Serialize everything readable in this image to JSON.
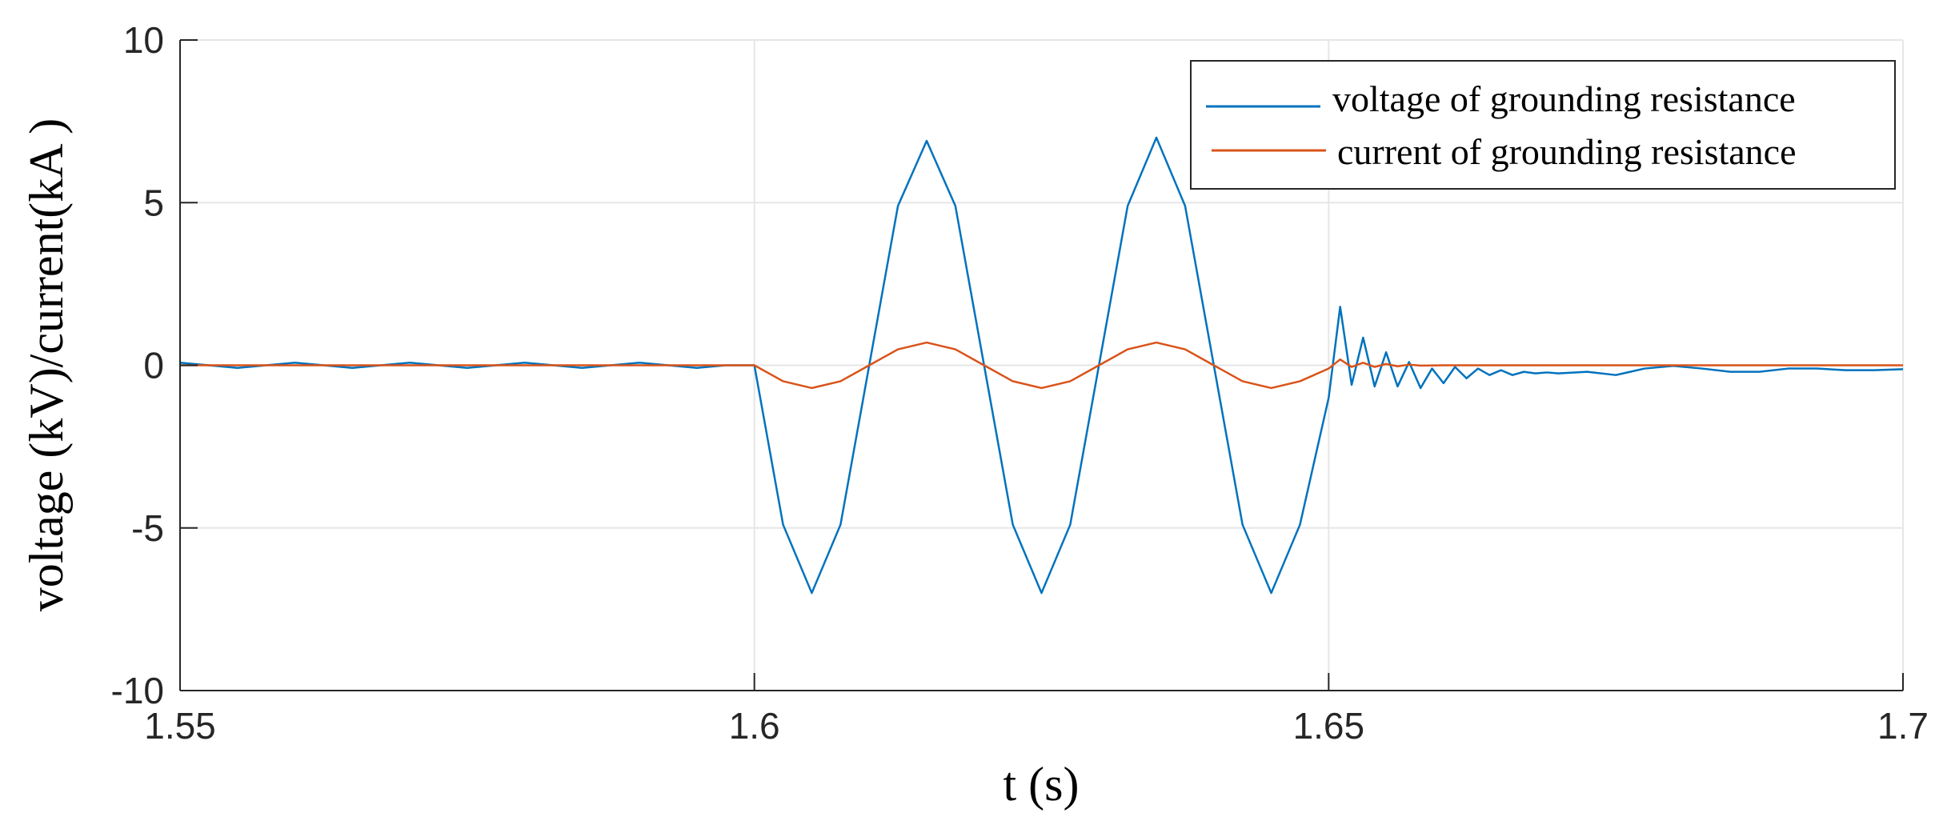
{
  "chart_data": {
    "type": "line",
    "xlabel": "t (s)",
    "ylabel": "voltage (kV)/current(kA )",
    "xlim": [
      1.55,
      1.7
    ],
    "ylim": [
      -10,
      10
    ],
    "xticks": [
      1.55,
      1.6,
      1.65,
      1.7
    ],
    "xtick_labels": [
      "1.55",
      "1.6",
      "1.65",
      "1.7"
    ],
    "yticks": [
      10,
      5,
      0,
      -5,
      -10
    ],
    "ytick_labels": [
      "10",
      "5",
      "0",
      "-5",
      "-10"
    ],
    "grid": true,
    "legend_position": "top-right",
    "series": [
      {
        "name": "voltage of grounding resistance",
        "color": "#0072BD",
        "x": [
          1.55,
          1.5525,
          1.555,
          1.5575,
          1.56,
          1.5625,
          1.565,
          1.5675,
          1.57,
          1.5725,
          1.575,
          1.5775,
          1.58,
          1.5825,
          1.585,
          1.5875,
          1.59,
          1.5925,
          1.595,
          1.5975,
          1.6,
          1.6025,
          1.605,
          1.6075,
          1.61,
          1.6125,
          1.615,
          1.6175,
          1.62,
          1.6225,
          1.625,
          1.6275,
          1.63,
          1.6325,
          1.635,
          1.6375,
          1.64,
          1.6425,
          1.645,
          1.6475,
          1.65,
          1.651,
          1.652,
          1.653,
          1.654,
          1.655,
          1.656,
          1.657,
          1.658,
          1.659,
          1.66,
          1.661,
          1.662,
          1.663,
          1.664,
          1.665,
          1.666,
          1.667,
          1.668,
          1.669,
          1.67,
          1.6725,
          1.675,
          1.6775,
          1.68,
          1.6825,
          1.685,
          1.6875,
          1.69,
          1.6925,
          1.695,
          1.6975,
          1.7
        ],
        "y": [
          0.08,
          0.0,
          -0.08,
          0.0,
          0.08,
          0.0,
          -0.08,
          0.0,
          0.08,
          0.0,
          -0.08,
          0.0,
          0.08,
          0.0,
          -0.08,
          0.0,
          0.08,
          0.0,
          -0.08,
          0.0,
          0.0,
          -4.9,
          -7.0,
          -4.9,
          0.0,
          4.9,
          6.9,
          4.9,
          0.0,
          -4.9,
          -7.0,
          -4.9,
          0.0,
          4.9,
          7.0,
          4.9,
          0.0,
          -4.9,
          -7.0,
          -4.9,
          -1.0,
          1.8,
          -0.6,
          0.85,
          -0.65,
          0.4,
          -0.65,
          0.1,
          -0.7,
          -0.1,
          -0.55,
          -0.05,
          -0.4,
          -0.1,
          -0.3,
          -0.15,
          -0.3,
          -0.2,
          -0.25,
          -0.22,
          -0.25,
          -0.2,
          -0.3,
          -0.1,
          -0.02,
          -0.1,
          -0.2,
          -0.2,
          -0.1,
          -0.1,
          -0.15,
          -0.15,
          -0.12
        ]
      },
      {
        "name": "current of grounding resistance",
        "color": "#D95319",
        "x": [
          1.55,
          1.56,
          1.57,
          1.58,
          1.59,
          1.6,
          1.6025,
          1.605,
          1.6075,
          1.61,
          1.6125,
          1.615,
          1.6175,
          1.62,
          1.6225,
          1.625,
          1.6275,
          1.63,
          1.6325,
          1.635,
          1.6375,
          1.64,
          1.6425,
          1.645,
          1.6475,
          1.65,
          1.651,
          1.652,
          1.653,
          1.654,
          1.655,
          1.656,
          1.657,
          1.658,
          1.66,
          1.665,
          1.67,
          1.68,
          1.69,
          1.7
        ],
        "y": [
          0.0,
          0.0,
          0.0,
          0.0,
          0.0,
          0.0,
          -0.49,
          -0.7,
          -0.49,
          0.0,
          0.49,
          0.7,
          0.49,
          0.0,
          -0.49,
          -0.7,
          -0.49,
          0.0,
          0.49,
          0.7,
          0.49,
          0.0,
          -0.49,
          -0.7,
          -0.49,
          -0.1,
          0.18,
          -0.05,
          0.08,
          -0.05,
          0.04,
          -0.03,
          0.02,
          -0.01,
          0.0,
          0.0,
          0.0,
          0.0,
          0.0,
          0.0
        ]
      }
    ]
  }
}
